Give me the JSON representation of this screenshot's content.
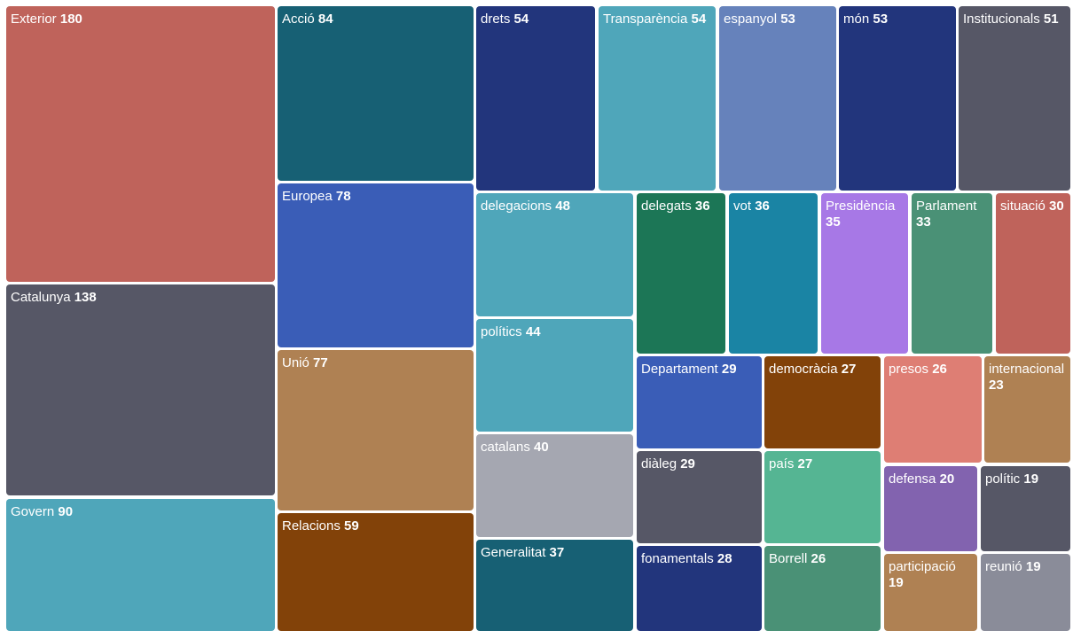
{
  "chart_data": {
    "type": "treemap",
    "title": "",
    "items": [
      {
        "label": "Exterior",
        "value": 180,
        "color": "#bf635b"
      },
      {
        "label": "Catalunya",
        "value": 138,
        "color": "#565766"
      },
      {
        "label": "Govern",
        "value": 90,
        "color": "#4fa6ba"
      },
      {
        "label": "Acció",
        "value": 84,
        "color": "#176074"
      },
      {
        "label": "Europea",
        "value": 78,
        "color": "#3a5db7"
      },
      {
        "label": "Unió",
        "value": 77,
        "color": "#af8153"
      },
      {
        "label": "Relacions",
        "value": 59,
        "color": "#824209"
      },
      {
        "label": "drets",
        "value": 54,
        "color": "#22357c"
      },
      {
        "label": "Transparència",
        "value": 54,
        "color": "#4fa6ba"
      },
      {
        "label": "espanyol",
        "value": 53,
        "color": "#6682bb"
      },
      {
        "label": "món",
        "value": 53,
        "color": "#22357c"
      },
      {
        "label": "Institucionals",
        "value": 51,
        "color": "#565766"
      },
      {
        "label": "delegacions",
        "value": 48,
        "color": "#4fa6ba"
      },
      {
        "label": "polítics",
        "value": 44,
        "color": "#4fa6ba"
      },
      {
        "label": "catalans",
        "value": 40,
        "color": "#a5a7b1"
      },
      {
        "label": "Generalitat",
        "value": 37,
        "color": "#176074"
      },
      {
        "label": "delegats",
        "value": 36,
        "color": "#1c7656"
      },
      {
        "label": "vot",
        "value": 36,
        "color": "#1a84a4"
      },
      {
        "label": "Presidència",
        "value": 35,
        "color": "#a778e6"
      },
      {
        "label": "Parlament",
        "value": 33,
        "color": "#4a9176"
      },
      {
        "label": "situació",
        "value": 30,
        "color": "#bf635b"
      },
      {
        "label": "Departament",
        "value": 29,
        "color": "#3a5db7"
      },
      {
        "label": "diàleg",
        "value": 29,
        "color": "#565766"
      },
      {
        "label": "fonamentals",
        "value": 28,
        "color": "#22357c"
      },
      {
        "label": "democràcia",
        "value": 27,
        "color": "#824209"
      },
      {
        "label": "país",
        "value": 27,
        "color": "#55b593"
      },
      {
        "label": "Borrell",
        "value": 26,
        "color": "#4a9176"
      },
      {
        "label": "presos",
        "value": 26,
        "color": "#de7e74"
      },
      {
        "label": "internacional",
        "value": 23,
        "color": "#af8153"
      },
      {
        "label": "defensa",
        "value": 20,
        "color": "#8263af"
      },
      {
        "label": "polític",
        "value": 19,
        "color": "#565766"
      },
      {
        "label": "participació",
        "value": 19,
        "color": "#af8153"
      },
      {
        "label": "reunió",
        "value": 19,
        "color": "#8a8c99"
      }
    ]
  }
}
